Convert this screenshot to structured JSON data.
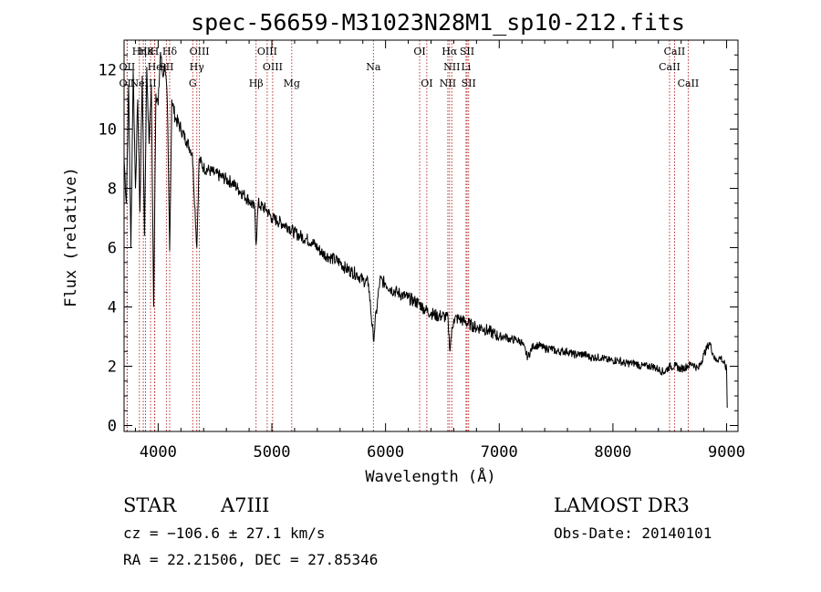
{
  "chart_data": {
    "type": "line",
    "title": "spec-56659-M31023N28M1_sp10-212.fits",
    "xlabel": "Wavelength (Å)",
    "ylabel": "Flux (relative)",
    "xlim": [
      3700,
      9100
    ],
    "ylim": [
      -0.2,
      13.0
    ],
    "x_ticks": [
      4000,
      5000,
      6000,
      7000,
      8000,
      9000
    ],
    "y_ticks": [
      0,
      2,
      4,
      6,
      8,
      10,
      12
    ],
    "series": [
      {
        "name": "spectrum",
        "x": [
          3700,
          3720,
          3740,
          3760,
          3780,
          3800,
          3820,
          3840,
          3860,
          3880,
          3900,
          3920,
          3940,
          3960,
          3980,
          4000,
          4020,
          4040,
          4060,
          4080,
          4101,
          4120,
          4150,
          4200,
          4250,
          4300,
          4340,
          4360,
          4400,
          4450,
          4500,
          4550,
          4600,
          4650,
          4700,
          4750,
          4800,
          4850,
          4861,
          4880,
          4900,
          4950,
          5000,
          5050,
          5100,
          5150,
          5200,
          5250,
          5300,
          5350,
          5400,
          5450,
          5500,
          5550,
          5600,
          5650,
          5700,
          5750,
          5800,
          5850,
          5893,
          5950,
          6000,
          6050,
          6100,
          6150,
          6200,
          6250,
          6300,
          6350,
          6400,
          6450,
          6500,
          6550,
          6563,
          6600,
          6650,
          6700,
          6750,
          6800,
          6850,
          6900,
          6950,
          7000,
          7050,
          7100,
          7150,
          7200,
          7250,
          7300,
          7350,
          7400,
          7450,
          7500,
          7550,
          7600,
          7650,
          7700,
          7750,
          7800,
          7850,
          7900,
          7950,
          8000,
          8050,
          8100,
          8150,
          8200,
          8250,
          8300,
          8350,
          8400,
          8450,
          8500,
          8550,
          8600,
          8650,
          8700,
          8750,
          8800,
          8850,
          8900,
          8950,
          9000,
          9005
        ],
        "y": [
          9.0,
          7.5,
          11.5,
          6.0,
          12.0,
          8.0,
          11.0,
          7.2,
          11.8,
          6.4,
          12.1,
          9.5,
          11.5,
          4.0,
          11.2,
          10.8,
          12.6,
          11.8,
          12.2,
          10.9,
          5.9,
          11.0,
          10.4,
          10.0,
          9.6,
          9.2,
          6.0,
          9.0,
          8.7,
          8.6,
          8.5,
          8.4,
          8.3,
          8.2,
          8.0,
          7.8,
          7.6,
          7.3,
          6.1,
          7.5,
          7.4,
          7.3,
          7.0,
          6.9,
          6.8,
          6.7,
          6.5,
          6.4,
          6.3,
          6.2,
          6.0,
          5.8,
          5.7,
          5.6,
          5.5,
          5.3,
          5.2,
          5.1,
          4.9,
          4.8,
          2.9,
          4.9,
          4.8,
          4.6,
          4.5,
          4.4,
          4.3,
          4.2,
          4.1,
          3.9,
          3.8,
          3.7,
          3.7,
          3.6,
          2.6,
          3.6,
          3.6,
          3.5,
          3.4,
          3.3,
          3.3,
          3.2,
          3.1,
          3.0,
          3.0,
          2.9,
          2.9,
          2.8,
          2.3,
          2.7,
          2.7,
          2.6,
          2.6,
          2.5,
          2.5,
          2.5,
          2.4,
          2.4,
          2.4,
          2.3,
          2.3,
          2.3,
          2.2,
          2.2,
          2.2,
          2.1,
          2.1,
          2.1,
          2.0,
          2.0,
          2.0,
          1.9,
          1.8,
          2.0,
          2.0,
          1.9,
          2.0,
          2.1,
          1.9,
          2.4,
          2.8,
          2.2,
          2.3,
          1.9,
          0.6
        ]
      }
    ],
    "line_markers": [
      {
        "label": "Hη",
        "wavelength": 3835,
        "row": 0
      },
      {
        "label": "OII",
        "wavelength": 3727,
        "row": 1
      },
      {
        "label": "OII",
        "wavelength": 3727,
        "row": 2
      },
      {
        "label": "Hε",
        "wavelength": 3889,
        "row": 0
      },
      {
        "label": "H",
        "wavelength": 3968,
        "row": 0
      },
      {
        "label": "K",
        "wavelength": 3933,
        "row": 0
      },
      {
        "label": "He",
        "wavelength": 3970,
        "row": 1
      },
      {
        "label": "NeIII",
        "wavelength": 3869,
        "row": 2
      },
      {
        "label": "SII",
        "wavelength": 4072,
        "row": 1
      },
      {
        "label": "Hδ",
        "wavelength": 4101,
        "row": 0
      },
      {
        "label": "OIII",
        "wavelength": 4363,
        "row": 0
      },
      {
        "label": "Hγ",
        "wavelength": 4340,
        "row": 1
      },
      {
        "label": "G",
        "wavelength": 4304,
        "row": 2
      },
      {
        "label": "OIII",
        "wavelength": 4959,
        "row": 0
      },
      {
        "label": "OIII",
        "wavelength": 5007,
        "row": 1
      },
      {
        "label": "Hβ",
        "wavelength": 4861,
        "row": 2
      },
      {
        "label": "Mg",
        "wavelength": 5175,
        "row": 2
      },
      {
        "label": "Na",
        "wavelength": 5893,
        "row": 1
      },
      {
        "label": "OI",
        "wavelength": 6300,
        "row": 0
      },
      {
        "label": "OI",
        "wavelength": 6363,
        "row": 2
      },
      {
        "label": "Hα",
        "wavelength": 6563,
        "row": 0
      },
      {
        "label": "SII",
        "wavelength": 6717,
        "row": 0
      },
      {
        "label": "NII",
        "wavelength": 6583,
        "row": 1
      },
      {
        "label": "Li",
        "wavelength": 6708,
        "row": 1
      },
      {
        "label": "NII",
        "wavelength": 6548,
        "row": 2
      },
      {
        "label": "SII",
        "wavelength": 6731,
        "row": 2
      },
      {
        "label": "CaII",
        "wavelength": 8542,
        "row": 0
      },
      {
        "label": "CaII",
        "wavelength": 8498,
        "row": 1
      },
      {
        "label": "CaII",
        "wavelength": 8662,
        "row": 2
      }
    ]
  },
  "info": {
    "class": "STAR",
    "subclass": "A7III",
    "survey": "LAMOST DR3",
    "cz": "cz = −106.6 ± 27.1 km/s",
    "obs_date": "Obs-Date: 20140101",
    "coords": "RA =  22.21506, DEC =  27.85346"
  }
}
